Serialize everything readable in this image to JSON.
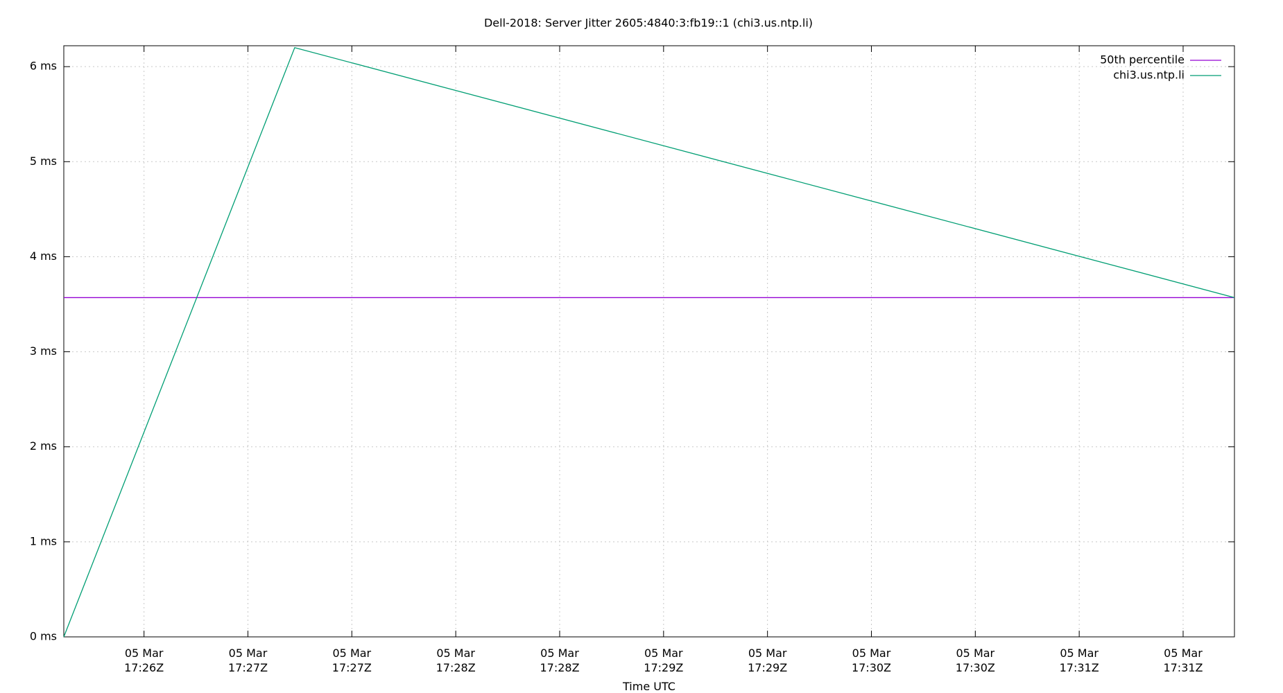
{
  "chart_data": {
    "type": "line",
    "title": "Dell-2018: Server Jitter 2605:4840:3:fb19::1 (chi3.us.ntp.li)",
    "x_label": "Time UTC",
    "x": [
      1045.614,
      1046.725,
      1051.247
    ],
    "series": [
      {
        "name": "50th percentile",
        "color": "#9400d3",
        "x": [
          1045.614,
          1051.247
        ],
        "values": [
          3.57,
          3.57
        ]
      },
      {
        "name": "chi3.us.ntp.li",
        "color": "#009e73",
        "values": [
          0,
          6.2,
          3.57
        ]
      }
    ],
    "xlim": [
      1045.614,
      1051.247
    ],
    "xticks": [
      {
        "value": 1046,
        "label": "05 Mar\n17:26Z"
      },
      {
        "value": 1046.5,
        "label": "05 Mar\n17:27Z"
      },
      {
        "value": 1047,
        "label": "05 Mar\n17:27Z"
      },
      {
        "value": 1047.5,
        "label": "05 Mar\n17:28Z"
      },
      {
        "value": 1048,
        "label": "05 Mar\n17:28Z"
      },
      {
        "value": 1048.5,
        "label": "05 Mar\n17:29Z"
      },
      {
        "value": 1049,
        "label": "05 Mar\n17:29Z"
      },
      {
        "value": 1049.5,
        "label": "05 Mar\n17:30Z"
      },
      {
        "value": 1050,
        "label": "05 Mar\n17:30Z"
      },
      {
        "value": 1050.5,
        "label": "05 Mar\n17:31Z"
      },
      {
        "value": 1051,
        "label": "05 Mar\n17:31Z"
      }
    ],
    "ylim": [
      0,
      6.22
    ],
    "yticks": [
      {
        "value": 0,
        "label": "0 ms"
      },
      {
        "value": 1,
        "label": "1 ms"
      },
      {
        "value": 2,
        "label": "2 ms"
      },
      {
        "value": 3,
        "label": "3 ms"
      },
      {
        "value": 4,
        "label": "4 ms"
      },
      {
        "value": 5,
        "label": "5 ms"
      },
      {
        "value": 6,
        "label": "6 ms"
      }
    ],
    "grid": true,
    "legend": "top-right"
  }
}
